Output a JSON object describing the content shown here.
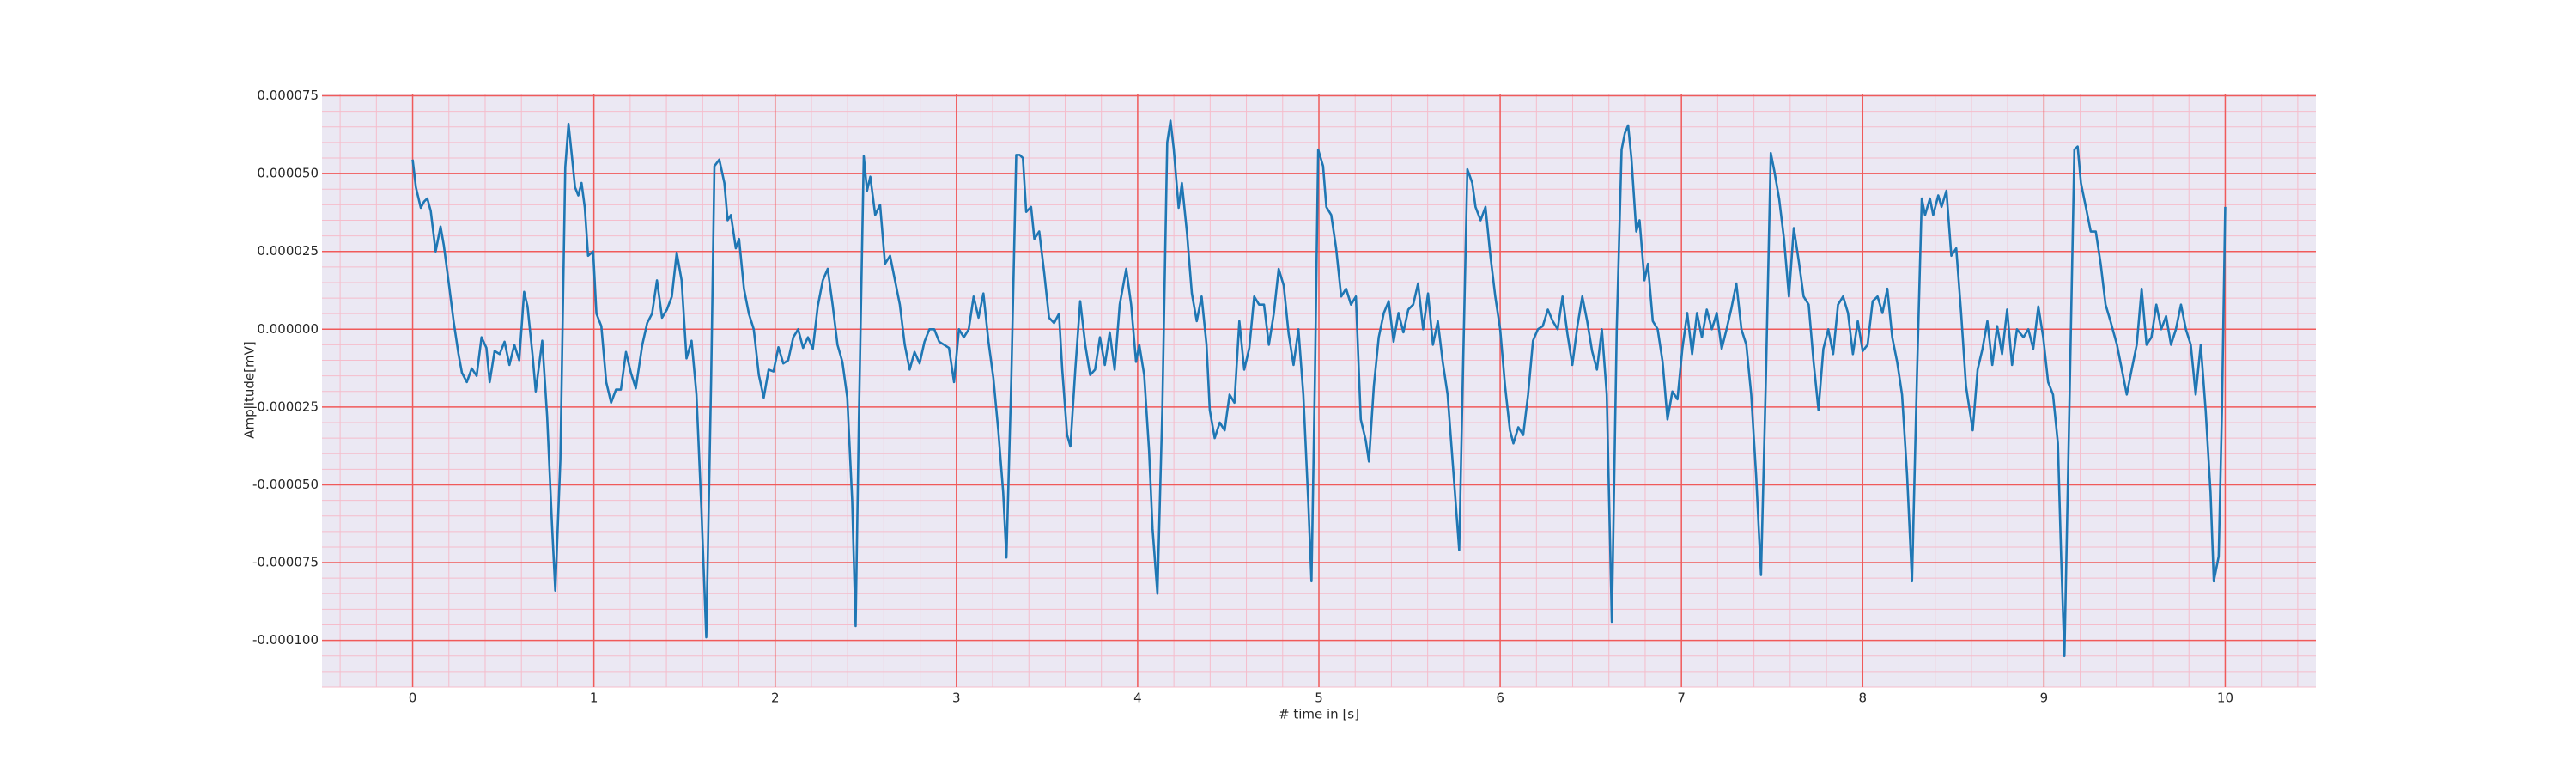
{
  "chart_data": {
    "type": "line",
    "xlabel": "# time in [s]",
    "ylabel": "Amplitude[mV]",
    "color": "#1f77b4",
    "background": "#ebe8f3",
    "grid": true,
    "grid_color": "#f05a5a",
    "minor_grid": true,
    "minor_grid_color": "#f5bccb",
    "xlim": [
      -0.5,
      10.5
    ],
    "xticks": [
      0,
      1,
      2,
      3,
      4,
      5,
      6,
      7,
      8,
      9,
      10
    ],
    "ylim": [
      -0.000115,
      7.57e-05
    ],
    "yticks": [
      {
        "value": 7.5e-05,
        "label": "0.000075"
      },
      {
        "value": 5e-05,
        "label": "0.000050"
      },
      {
        "value": 2.5e-05,
        "label": "0.000025"
      },
      {
        "value": 0,
        "label": "0.000000"
      },
      {
        "value": -2.5e-05,
        "label": "-0.000025"
      },
      {
        "value": -5e-05,
        "label": "-0.000050"
      },
      {
        "value": -7.5e-05,
        "label": "-0.000075"
      },
      {
        "value": -0.0001,
        "label": "-0.000100"
      }
    ],
    "x": [
      0,
      0.018,
      0.045,
      0.063,
      0.081,
      0.1,
      0.127,
      0.154,
      0.172,
      0.199,
      0.226,
      0.253,
      0.272,
      0.299,
      0.326,
      0.353,
      0.38,
      0.407,
      0.425,
      0.452,
      0.48,
      0.507,
      0.534,
      0.561,
      0.588,
      0.615,
      0.634,
      0.661,
      0.679,
      0.715,
      0.742,
      0.769,
      0.787,
      0.815,
      0.842,
      0.86,
      0.878,
      0.896,
      0.914,
      0.932,
      0.95,
      0.968,
      0.996,
      1.014,
      1.041,
      1.068,
      1.095,
      1.122,
      1.149,
      1.177,
      1.204,
      1.231,
      1.267,
      1.294,
      1.321,
      1.348,
      1.376,
      1.403,
      1.43,
      1.457,
      1.484,
      1.511,
      1.539,
      1.566,
      1.593,
      1.62,
      1.647,
      1.665,
      1.692,
      1.72,
      1.738,
      1.756,
      1.783,
      1.801,
      1.828,
      1.855,
      1.882,
      1.91,
      1.937,
      1.964,
      1.991,
      2.018,
      2.045,
      2.072,
      2.1,
      2.127,
      2.154,
      2.181,
      2.208,
      2.235,
      2.263,
      2.29,
      2.317,
      2.344,
      2.371,
      2.398,
      2.425,
      2.444,
      2.462,
      2.489,
      2.507,
      2.525,
      2.552,
      2.579,
      2.606,
      2.634,
      2.661,
      2.688,
      2.715,
      2.742,
      2.769,
      2.797,
      2.824,
      2.851,
      2.878,
      2.905,
      2.932,
      2.959,
      2.987,
      3.014,
      3.041,
      3.068,
      3.095,
      3.122,
      3.149,
      3.177,
      3.204,
      3.231,
      3.258,
      3.276,
      3.303,
      3.33,
      3.349,
      3.367,
      3.385,
      3.412,
      3.43,
      3.457,
      3.484,
      3.511,
      3.539,
      3.566,
      3.584,
      3.611,
      3.629,
      3.656,
      3.683,
      3.711,
      3.738,
      3.765,
      3.792,
      3.819,
      3.846,
      3.873,
      3.901,
      3.937,
      3.964,
      3.991,
      4.009,
      4.036,
      4.063,
      4.082,
      4.109,
      4.136,
      4.163,
      4.181,
      4.199,
      4.226,
      4.244,
      4.272,
      4.299,
      4.326,
      4.353,
      4.38,
      4.398,
      4.425,
      4.453,
      4.48,
      4.507,
      4.534,
      4.561,
      4.588,
      4.616,
      4.643,
      4.67,
      4.697,
      4.724,
      4.751,
      4.778,
      4.806,
      4.833,
      4.86,
      4.887,
      4.914,
      4.941,
      4.959,
      4.978,
      4.996,
      5.023,
      5.041,
      5.068,
      5.095,
      5.123,
      5.15,
      5.177,
      5.204,
      5.231,
      5.258,
      5.276,
      5.303,
      5.33,
      5.358,
      5.385,
      5.412,
      5.439,
      5.466,
      5.493,
      5.52,
      5.547,
      5.575,
      5.602,
      5.629,
      5.656,
      5.683,
      5.71,
      5.737,
      5.774,
      5.792,
      5.819,
      5.846,
      5.864,
      5.892,
      5.919,
      5.946,
      5.973,
      6.0,
      6.027,
      6.054,
      6.073,
      6.1,
      6.127,
      6.154,
      6.181,
      6.208,
      6.235,
      6.263,
      6.29,
      6.317,
      6.344,
      6.371,
      6.398,
      6.426,
      6.453,
      6.48,
      6.507,
      6.534,
      6.561,
      6.588,
      6.616,
      6.643,
      6.67,
      6.688,
      6.706,
      6.724,
      6.751,
      6.769,
      6.796,
      6.815,
      6.842,
      6.869,
      6.896,
      6.923,
      6.95,
      6.978,
      7.005,
      7.032,
      7.059,
      7.086,
      7.113,
      7.14,
      7.168,
      7.195,
      7.222,
      7.249,
      7.276,
      7.303,
      7.331,
      7.358,
      7.385,
      7.412,
      7.439,
      7.466,
      7.493,
      7.512,
      7.539,
      7.566,
      7.593,
      7.62,
      7.647,
      7.674,
      7.702,
      7.729,
      7.756,
      7.783,
      7.81,
      7.837,
      7.864,
      7.892,
      7.919,
      7.946,
      7.973,
      8.0,
      8.027,
      8.055,
      8.082,
      8.109,
      8.136,
      8.163,
      8.19,
      8.217,
      8.245,
      8.272,
      8.299,
      8.326,
      8.344,
      8.371,
      8.389,
      8.417,
      8.435,
      8.462,
      8.489,
      8.516,
      8.543,
      8.57,
      8.607,
      8.634,
      8.661,
      8.688,
      8.715,
      8.742,
      8.769,
      8.797,
      8.824,
      8.851,
      8.887,
      8.914,
      8.941,
      8.969,
      8.996,
      9.023,
      9.05,
      9.077,
      9.095,
      9.113,
      9.14,
      9.168,
      9.186,
      9.204,
      9.231,
      9.258,
      9.286,
      9.313,
      9.34,
      9.367,
      9.403,
      9.43,
      9.457,
      9.484,
      9.512,
      9.539,
      9.566,
      9.593,
      9.62,
      9.647,
      9.674,
      9.701,
      9.728,
      9.756,
      9.783,
      9.81,
      9.837,
      9.865,
      9.892,
      9.919,
      9.937,
      9.964,
      9.982,
      10.0
    ],
    "values": [
      5.45e-05,
      4.56e-05,
      3.9e-05,
      4.1e-05,
      4.2e-05,
      3.8e-05,
      2.5e-05,
      3.3e-05,
      2.7e-05,
      1.5e-05,
      2.6e-06,
      -8e-06,
      -1.4e-05,
      -1.7e-05,
      -1.26e-05,
      -1.5e-05,
      -2.6e-06,
      -6e-06,
      -1.7e-05,
      -7e-06,
      -8e-06,
      -4e-06,
      -1.15e-05,
      -5e-06,
      -1e-05,
      1.2e-05,
      7.3e-06,
      -8e-06,
      -2e-05,
      -3.7e-06,
      -2.8e-05,
      -6.3e-05,
      -8.4e-05,
      -4.2e-05,
      5.2e-05,
      6.6e-05,
      5.6e-05,
      4.56e-05,
      4.3e-05,
      4.7e-05,
      3.9e-05,
      2.36e-05,
      2.5e-05,
      5e-06,
      1e-06,
      -1.7e-05,
      -2.36e-05,
      -1.94e-05,
      -1.94e-05,
      -7.3e-06,
      -1.4e-05,
      -1.9e-05,
      -5e-06,
      2e-06,
      5e-06,
      1.57e-05,
      3.7e-06,
      6.3e-06,
      1.05e-05,
      2.46e-05,
      1.57e-05,
      -9.4e-06,
      -3.7e-06,
      -2.1e-05,
      -5.77e-05,
      -9.9e-05,
      -1.57e-05,
      5.24e-05,
      5.45e-05,
      4.7e-05,
      3.5e-05,
      3.67e-05,
      2.6e-05,
      2.9e-05,
      1.3e-05,
      5e-06,
      0,
      -1.47e-05,
      -2.2e-05,
      -1.3e-05,
      -1.36e-05,
      -5.8e-06,
      -1.1e-05,
      -1e-05,
      -2.6e-06,
      0,
      -6e-06,
      -2.6e-06,
      -6.3e-06,
      7.3e-06,
      1.57e-05,
      1.94e-05,
      7.9e-06,
      -5e-06,
      -1.05e-05,
      -2.2e-05,
      -5.5e-05,
      -9.54e-05,
      -2.9e-05,
      5.56e-05,
      4.45e-05,
      4.9e-05,
      3.67e-05,
      4e-05,
      2.1e-05,
      2.36e-05,
      1.57e-05,
      7.9e-06,
      -5e-06,
      -1.3e-05,
      -7.3e-06,
      -1.1e-05,
      -4e-06,
      0,
      0,
      -4e-06,
      -5e-06,
      -6e-06,
      -1.7e-05,
      0,
      -2.6e-06,
      0,
      1.05e-05,
      3.7e-06,
      1.15e-05,
      -4e-06,
      -1.57e-05,
      -3.25e-05,
      -5.24e-05,
      -7.34e-05,
      -1.57e-05,
      5.6e-05,
      5.6e-05,
      5.5e-05,
      3.77e-05,
      3.93e-05,
      2.9e-05,
      3.14e-05,
      1.83e-05,
      3.7e-06,
      2e-06,
      5e-06,
      -1.3e-05,
      -3.4e-05,
      -3.77e-05,
      -1.3e-05,
      9e-06,
      -5e-06,
      -1.47e-05,
      -1.3e-05,
      -2.6e-06,
      -1.15e-05,
      -1e-06,
      -1.3e-05,
      7.9e-06,
      1.94e-05,
      7.9e-06,
      -1.05e-05,
      -5e-06,
      -1.47e-05,
      -3.9e-05,
      -6.4e-05,
      -8.5e-05,
      -2.6e-05,
      6e-05,
      6.7e-05,
      5.8e-05,
      3.9e-05,
      4.7e-05,
      3.1e-05,
      1.15e-05,
      2.6e-06,
      1.05e-05,
      -5e-06,
      -2.6e-05,
      -3.5e-05,
      -3e-05,
      -3.25e-05,
      -2.1e-05,
      -2.36e-05,
      2.6e-06,
      -1.3e-05,
      -6e-06,
      1.05e-05,
      7.9e-06,
      7.9e-06,
      -5e-06,
      5e-06,
      1.94e-05,
      1.4e-05,
      -1.5e-06,
      -1.15e-05,
      0,
      -2.1e-05,
      -5.5e-05,
      -8.1e-05,
      -1.57e-05,
      5.77e-05,
      5.24e-05,
      3.93e-05,
      3.67e-05,
      2.6e-05,
      1.05e-05,
      1.3e-05,
      7.9e-06,
      1.05e-05,
      -2.9e-05,
      -3.56e-05,
      -4.25e-05,
      -1.83e-05,
      -2.6e-06,
      5.2e-06,
      9e-06,
      -4e-06,
      5.2e-06,
      -1e-06,
      6.3e-06,
      7.9e-06,
      1.47e-05,
      0,
      1.15e-05,
      -5e-06,
      2.6e-06,
      -1.05e-05,
      -2.1e-05,
      -4.2e-05,
      -7.1e-05,
      -2.1e-05,
      5.14e-05,
      4.7e-05,
      3.93e-05,
      3.5e-05,
      3.93e-05,
      2.36e-05,
      1.05e-05,
      0,
      -1.83e-05,
      -3.25e-05,
      -3.67e-05,
      -3.15e-05,
      -3.4e-05,
      -2.1e-05,
      -3.7e-06,
      0,
      1e-06,
      6.3e-06,
      2.6e-06,
      0,
      1.05e-05,
      -1.5e-06,
      -1.15e-05,
      1e-06,
      1.05e-05,
      2.6e-06,
      -7e-06,
      -1.3e-05,
      0,
      -2.1e-05,
      -9.4e-05,
      0,
      5.77e-05,
      6.3e-05,
      6.55e-05,
      5.5e-05,
      3.14e-05,
      3.5e-05,
      1.57e-05,
      2.1e-05,
      2.6e-06,
      0,
      -1.05e-05,
      -2.9e-05,
      -2e-05,
      -2.25e-05,
      -6.3e-06,
      5.2e-06,
      -8e-06,
      5.2e-06,
      -2.6e-06,
      6.3e-06,
      0,
      5.2e-06,
      -6.3e-06,
      0,
      6.8e-06,
      1.47e-05,
      0,
      -5e-06,
      -2.1e-05,
      -4.7e-05,
      -7.9e-05,
      -1.57e-05,
      5.66e-05,
      5.1e-05,
      4.2e-05,
      2.9e-05,
      1.05e-05,
      3.25e-05,
      2.2e-05,
      1.05e-05,
      7.9e-06,
      -1.05e-05,
      -2.6e-05,
      -6.3e-06,
      0,
      -8e-06,
      7.9e-06,
      1.05e-05,
      5.2e-06,
      -8e-06,
      2.6e-06,
      -7e-06,
      -5e-06,
      9e-06,
      1.05e-05,
      5.2e-06,
      1.3e-05,
      -2.6e-06,
      -1.05e-05,
      -2.1e-05,
      -4.7e-05,
      -8.1e-05,
      -1.57e-05,
      4.2e-05,
      3.67e-05,
      4.2e-05,
      3.67e-05,
      4.3e-05,
      3.93e-05,
      4.45e-05,
      2.36e-05,
      2.6e-05,
      5.2e-06,
      -1.83e-05,
      -3.25e-05,
      -1.3e-05,
      -6.3e-06,
      2.6e-06,
      -1.15e-05,
      1e-06,
      -8e-06,
      6.3e-06,
      -1.15e-05,
      0,
      -2.6e-06,
      0,
      -6.3e-06,
      7.3e-06,
      -2.6e-06,
      -1.7e-05,
      -2.1e-05,
      -3.67e-05,
      -7.34e-05,
      -0.000105,
      -2.6e-05,
      5.77e-05,
      5.87e-05,
      4.7e-05,
      3.93e-05,
      3.14e-05,
      3.14e-05,
      2.1e-05,
      7.9e-06,
      2.6e-06,
      -5e-06,
      -1.3e-05,
      -2.1e-05,
      -1.3e-05,
      -5e-06,
      1.3e-05,
      -5e-06,
      -2.6e-06,
      7.9e-06,
      0,
      4.2e-06,
      -5e-06,
      0,
      7.9e-06,
      0,
      -5e-06,
      -2.1e-05,
      -5e-06,
      -2.6e-05,
      -5.24e-05,
      -8.1e-05,
      -7.3e-05,
      -2.6e-05,
      3.93e-05
    ]
  }
}
